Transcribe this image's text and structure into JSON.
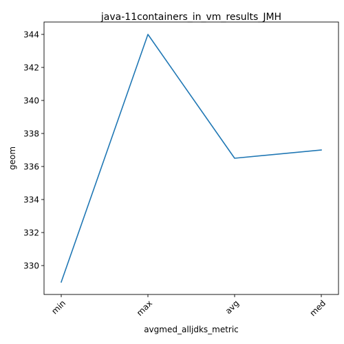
{
  "chart_data": {
    "type": "line",
    "title": "java-11containers_in_vm_results_JMH",
    "xlabel": "avgmed_alljdks_metric",
    "ylabel": "geom",
    "categories": [
      "min",
      "max",
      "avg",
      "med"
    ],
    "series": [
      {
        "values": [
          329.0,
          344.0,
          336.5,
          337.0
        ],
        "color": "#1f77b4"
      }
    ],
    "ylim": [
      328.25,
      344.75
    ],
    "yticks": [
      330,
      332,
      334,
      336,
      338,
      340,
      342,
      344
    ],
    "grid": false,
    "x_tick_rotation": "45 degrees"
  }
}
